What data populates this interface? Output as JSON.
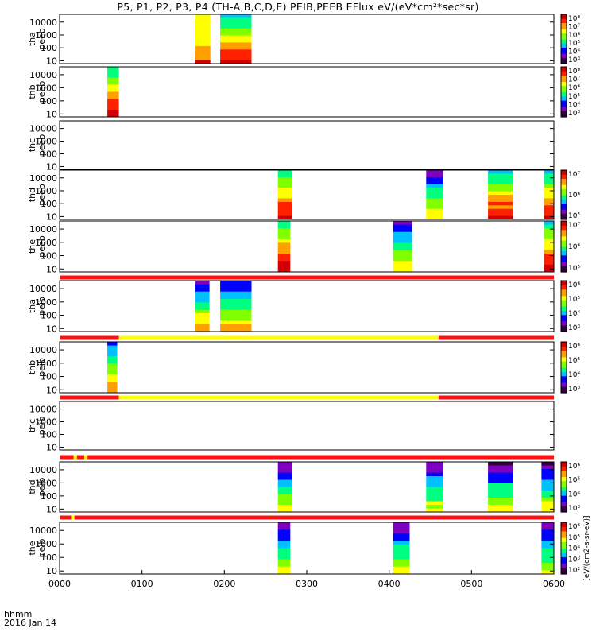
{
  "title": "P5, P1, P2, P3, P4 (TH-A,B,C,D,E) PEIB,PEEB EFlux eV/(eV*cm²*sec*sr)",
  "chart_data": {
    "type": "heatmap",
    "x_ticks": [
      "0000",
      "0100",
      "0200",
      "0300",
      "0400",
      "0500",
      "0600"
    ],
    "x_range_hours": [
      0,
      6
    ],
    "x_caption": [
      "hhmm",
      "2016 Jan 14"
    ],
    "y_scale": "log",
    "y_range": [
      6,
      40000
    ],
    "y_ticks": [
      "10",
      "100",
      "1000",
      "10000"
    ],
    "colormap": [
      "#300040",
      "#8000c0",
      "#0000ff",
      "#00c0ff",
      "#00ff80",
      "#80ff00",
      "#ffff00",
      "#ffa000",
      "#ff2000",
      "#d00000"
    ],
    "panels": [
      {
        "label_top": "tha",
        "label_bottom": "peeb",
        "cbar_ticks": [
          "10⁸",
          "10⁷",
          "10⁶",
          "10⁵",
          "10⁴",
          "10³"
        ],
        "cbar_title": "",
        "spectra": [
          {
            "t0": 1.65,
            "t1": 1.83,
            "level": 0.65,
            "flat": true
          },
          {
            "t0": 1.95,
            "t1": 2.33,
            "level": 0.8,
            "flat": false
          }
        ]
      },
      {
        "label_top": "thb",
        "label_bottom": "peeb",
        "cbar_ticks": [
          "10⁸",
          "10⁷",
          "10⁶",
          "10⁵",
          "10⁴",
          "10³"
        ],
        "cbar_title": "",
        "spectra": [
          {
            "t0": 0.58,
            "t1": 0.72,
            "level": 0.9,
            "flat": false
          }
        ]
      },
      {
        "label_top": "thc",
        "label_bottom": "peeb",
        "cbar_ticks": [],
        "cbar_title": "",
        "spectra": []
      },
      {
        "label_top": "thd",
        "label_bottom": "peeb",
        "cbar_ticks": [
          "10⁷",
          "10⁶",
          "10⁵"
        ],
        "cbar_title": "",
        "spectra": [
          {
            "t0": 2.65,
            "t1": 2.82,
            "level": 0.9,
            "flat": false
          },
          {
            "t0": 4.45,
            "t1": 4.65,
            "level": 0.45,
            "flat": false
          },
          {
            "t0": 5.2,
            "t1": 5.5,
            "level": 0.85,
            "flat": false
          },
          {
            "t0": 5.88,
            "t1": 6.0,
            "level": 0.85,
            "flat": false
          }
        ]
      },
      {
        "label_top": "the",
        "label_bottom": "peeb",
        "cbar_ticks": [
          "10⁷",
          "10⁶",
          "10⁵"
        ],
        "cbar_title": "",
        "spectra": [
          {
            "t0": 2.65,
            "t1": 2.8,
            "level": 0.95,
            "flat": false
          },
          {
            "t0": 4.05,
            "t1": 4.28,
            "level": 0.45,
            "flat": false
          },
          {
            "t0": 5.88,
            "t1": 6.0,
            "level": 0.9,
            "flat": false
          }
        ]
      },
      {
        "label_top": "tha",
        "label_bottom": "peib",
        "cbar_ticks": [
          "10⁶",
          "10⁵",
          "10⁴",
          "10³"
        ],
        "cbar_title": "",
        "spectra": [
          {
            "t0": 1.65,
            "t1": 1.82,
            "level": 0.5,
            "flat": false
          },
          {
            "t0": 1.95,
            "t1": 2.33,
            "level": 0.5,
            "flat": false
          }
        ]
      },
      {
        "label_top": "thb",
        "label_bottom": "peib",
        "cbar_ticks": [
          "10⁶",
          "10⁵",
          "10⁴",
          "10³"
        ],
        "cbar_title": "",
        "spectra": [
          {
            "t0": 0.58,
            "t1": 0.7,
            "level": 0.6,
            "flat": false
          }
        ]
      },
      {
        "label_top": "thc",
        "label_bottom": "peib",
        "cbar_ticks": [],
        "cbar_title": "",
        "spectra": []
      },
      {
        "label_top": "thd",
        "label_bottom": "peib",
        "cbar_ticks": [
          "10⁶",
          "10⁵",
          "10⁴",
          "10³"
        ],
        "cbar_title": "",
        "spectra": [
          {
            "t0": 2.65,
            "t1": 2.82,
            "level": 0.35,
            "flat": false
          },
          {
            "t0": 4.45,
            "t1": 4.65,
            "level": 0.35,
            "flat": false
          },
          {
            "t0": 5.2,
            "t1": 5.5,
            "level": 0.35,
            "flat": false
          },
          {
            "t0": 5.85,
            "t1": 6.0,
            "level": 0.35,
            "flat": false
          }
        ]
      },
      {
        "label_top": "the",
        "label_bottom": "peib",
        "cbar_ticks": [
          "10⁶",
          "10⁵",
          "10⁴",
          "10³",
          "10²"
        ],
        "cbar_title": "[eV/(cm2-s-sr-eV)]",
        "spectra": [
          {
            "t0": 2.65,
            "t1": 2.8,
            "level": 0.35,
            "flat": false
          },
          {
            "t0": 4.05,
            "t1": 4.25,
            "level": 0.35,
            "flat": false
          },
          {
            "t0": 5.85,
            "t1": 6.0,
            "level": 0.35,
            "flat": false
          }
        ]
      }
    ],
    "mode_bars": [
      {
        "after_panel": 5,
        "segments": [
          {
            "t0": 0,
            "t1": 6,
            "color": "red"
          }
        ]
      },
      {
        "after_panel": 6,
        "segments": [
          {
            "t0": 0,
            "t1": 0.72,
            "color": "red"
          },
          {
            "t0": 0.72,
            "t1": 4.6,
            "color": "yellow"
          },
          {
            "t0": 4.6,
            "t1": 6,
            "color": "red"
          }
        ]
      },
      {
        "after_panel": 7,
        "segments": [
          {
            "t0": 0,
            "t1": 0.72,
            "color": "red"
          },
          {
            "t0": 0.72,
            "t1": 4.6,
            "color": "yellow"
          },
          {
            "t0": 4.6,
            "t1": 6,
            "color": "red"
          }
        ]
      },
      {
        "after_panel": 8,
        "segments": [
          {
            "t0": 0,
            "t1": 6,
            "color": "red"
          },
          {
            "t0": 0.17,
            "t1": 0.21,
            "color": "yellow"
          },
          {
            "t0": 0.3,
            "t1": 0.34,
            "color": "yellow"
          }
        ]
      },
      {
        "after_panel": 9,
        "segments": [
          {
            "t0": 0,
            "t1": 6,
            "color": "red"
          },
          {
            "t0": 0.14,
            "t1": 0.18,
            "color": "yellow"
          }
        ]
      }
    ]
  }
}
